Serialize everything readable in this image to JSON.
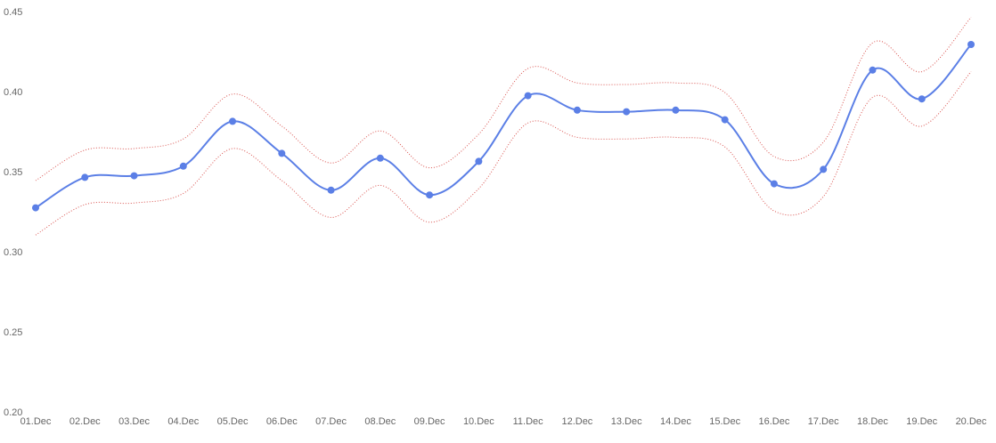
{
  "chart_data": {
    "type": "line",
    "categories": [
      "01.Dec",
      "02.Dec",
      "03.Dec",
      "04.Dec",
      "05.Dec",
      "06.Dec",
      "07.Dec",
      "08.Dec",
      "09.Dec",
      "10.Dec",
      "11.Dec",
      "12.Dec",
      "13.Dec",
      "14.Dec",
      "15.Dec",
      "16.Dec",
      "17.Dec",
      "18.Dec",
      "19.Dec",
      "20.Dec"
    ],
    "series": [
      {
        "color": "#5b7fe6",
        "markers": true,
        "dotted": false,
        "values": [
          0.328,
          0.347,
          0.348,
          0.354,
          0.382,
          0.362,
          0.339,
          0.359,
          0.336,
          0.357,
          0.398,
          0.389,
          0.388,
          0.389,
          0.383,
          0.343,
          0.352,
          0.414,
          0.396,
          0.43
        ]
      },
      {
        "color": "#d9534f",
        "markers": false,
        "dotted": true,
        "values": [
          0.345,
          0.364,
          0.365,
          0.371,
          0.399,
          0.379,
          0.356,
          0.376,
          0.353,
          0.374,
          0.415,
          0.406,
          0.405,
          0.406,
          0.4,
          0.36,
          0.369,
          0.431,
          0.413,
          0.447
        ]
      },
      {
        "color": "#d9534f",
        "markers": false,
        "dotted": true,
        "values": [
          0.311,
          0.33,
          0.331,
          0.337,
          0.365,
          0.345,
          0.322,
          0.342,
          0.319,
          0.34,
          0.381,
          0.372,
          0.371,
          0.372,
          0.366,
          0.326,
          0.335,
          0.397,
          0.379,
          0.413
        ]
      }
    ],
    "ylim": [
      0.2,
      0.45
    ],
    "yticks": [
      {
        "value": 0.2,
        "label": "0.20"
      },
      0.25,
      {
        "value": 0.3,
        "label": "0.30"
      },
      0.35,
      {
        "value": 0.4,
        "label": "0.40"
      },
      0.45
    ],
    "grid": false
  }
}
